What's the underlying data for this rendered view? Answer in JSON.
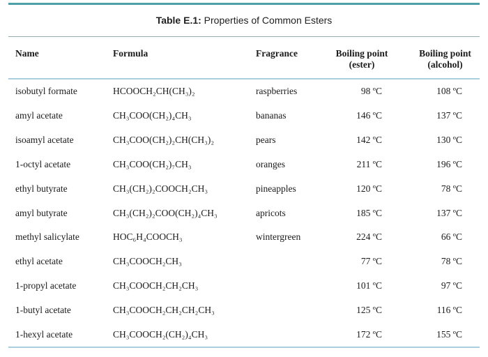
{
  "caption": {
    "label": "Table E.1:",
    "title": "Properties of Common Esters"
  },
  "colors": {
    "teal": "#4fa0a6",
    "titlesep": "#93abb0",
    "lightblue": "#a9cede",
    "ink": "#1b1b1b"
  },
  "table": {
    "headers": {
      "name": "Name",
      "formula": "Formula",
      "fragrance": "Fragrance",
      "bp_ester_line1": "Boiling point",
      "bp_ester_line2": "(ester)",
      "bp_alcohol_line1": "Boiling point",
      "bp_alcohol_line2": "(alcohol)"
    },
    "rows": [
      {
        "name": "isobutyl formate",
        "formula": "HCOOCH₂CH(CH₃)₂",
        "fragrance": "raspberries",
        "bp_ester": "98 ºC",
        "bp_alcohol": "108 ºC"
      },
      {
        "name": "amyl acetate",
        "formula": "CH₃COO(CH₂)₄CH₃",
        "fragrance": "bananas",
        "bp_ester": "146 ºC",
        "bp_alcohol": "137 ºC"
      },
      {
        "name": "isoamyl acetate",
        "formula": "CH₃COO(CH₂)₂CH(CH₃)₂",
        "fragrance": "pears",
        "bp_ester": "142 ºC",
        "bp_alcohol": "130 ºC"
      },
      {
        "name": "1-octyl acetate",
        "formula": "CH₃COO(CH₂)₇CH₃",
        "fragrance": "oranges",
        "bp_ester": "211 ºC",
        "bp_alcohol": "196 ºC"
      },
      {
        "name": "ethyl butyrate",
        "formula": "CH₃(CH₂)₂COOCH₂CH₃",
        "fragrance": "pineapples",
        "bp_ester": "120 ºC",
        "bp_alcohol": "78 ºC"
      },
      {
        "name": "amyl butyrate",
        "formula": "CH₃(CH₂)₂COO(CH₂)₄CH₃",
        "fragrance": "apricots",
        "bp_ester": "185 ºC",
        "bp_alcohol": "137 ºC"
      },
      {
        "name": "methyl salicylate",
        "formula": "HOC₆H₄COOCH₃",
        "fragrance": "wintergreen",
        "bp_ester": "224 ºC",
        "bp_alcohol": "66 ºC"
      },
      {
        "name": "ethyl acetate",
        "formula": "CH₃COOCH₂CH₃",
        "fragrance": "",
        "bp_ester": "77 ºC",
        "bp_alcohol": "78 ºC"
      },
      {
        "name": "1-propyl acetate",
        "formula": "CH₃COOCH₂CH₂CH₃",
        "fragrance": "",
        "bp_ester": "101 ºC",
        "bp_alcohol": "97 ºC"
      },
      {
        "name": "1-butyl acetate",
        "formula": "CH₃COOCH₂CH₂CH₂CH₃",
        "fragrance": "",
        "bp_ester": "125 ºC",
        "bp_alcohol": "116 ºC"
      },
      {
        "name": "1-hexyl acetate",
        "formula": "CH₃COOCH₂(CH₂)₄CH₃",
        "fragrance": "",
        "bp_ester": "172 ºC",
        "bp_alcohol": "155 ºC"
      }
    ]
  }
}
